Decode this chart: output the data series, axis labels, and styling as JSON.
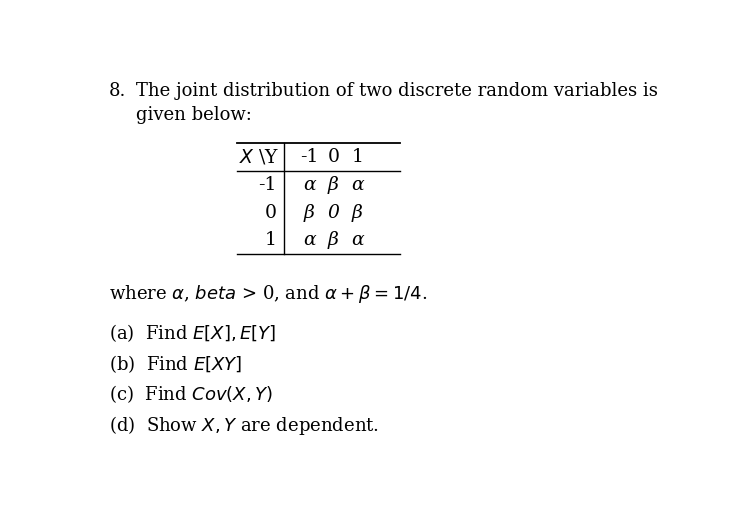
{
  "background_color": "#ffffff",
  "title_number": "8.",
  "title_text1": "The joint distribution of two discrete random variables is",
  "title_text2": "given below:",
  "table": {
    "col_headers": [
      "-1",
      "0",
      "1"
    ],
    "row_headers": [
      "-1",
      "0",
      "1"
    ],
    "cells": [
      [
        "α",
        "β",
        "α"
      ],
      [
        "β",
        "0",
        "β"
      ],
      [
        "α",
        "β",
        "α"
      ]
    ]
  },
  "font_size_title": 13,
  "font_size_table": 13.5,
  "font_size_parts": 13,
  "text_color": "#000000"
}
